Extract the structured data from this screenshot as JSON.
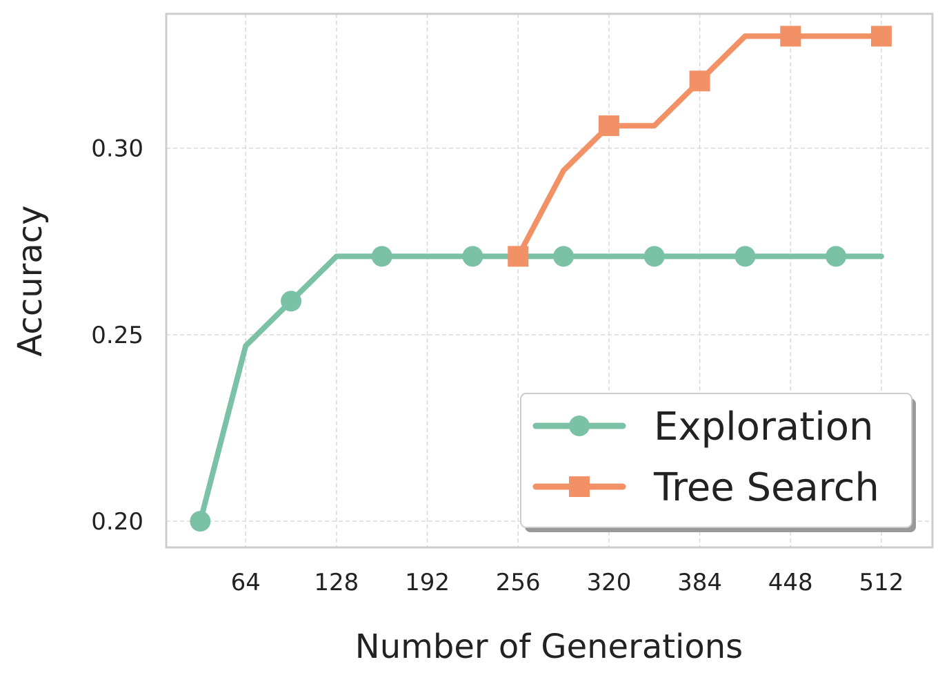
{
  "chart_data": {
    "type": "line",
    "title": "",
    "xlabel": "Number of Generations",
    "ylabel": "Accuracy",
    "xlim": [
      8,
      548
    ],
    "ylim": [
      0.193,
      0.336
    ],
    "xticks": [
      64,
      128,
      192,
      256,
      320,
      384,
      448,
      512
    ],
    "xtick_labels": [
      "64",
      "128",
      "192",
      "256",
      "320",
      "384",
      "448",
      "512"
    ],
    "yticks": [
      0.2,
      0.25,
      0.3
    ],
    "ytick_labels": [
      "0.20",
      "0.25",
      "0.30"
    ],
    "grid": true,
    "legend_position": "lower-right",
    "series": [
      {
        "name": "Exploration",
        "color": "#7bc1a5",
        "marker": "circle",
        "x": [
          32,
          64,
          96,
          128,
          160,
          192,
          224,
          256,
          288,
          320,
          352,
          384,
          416,
          448,
          480,
          512
        ],
        "y": [
          0.2,
          0.247,
          0.259,
          0.271,
          0.271,
          0.271,
          0.271,
          0.271,
          0.271,
          0.271,
          0.271,
          0.271,
          0.271,
          0.271,
          0.271,
          0.271
        ],
        "marker_x": [
          32,
          96,
          160,
          224,
          288,
          352,
          416,
          480
        ]
      },
      {
        "name": "Tree Search",
        "color": "#f29166",
        "marker": "square",
        "x": [
          256,
          288,
          320,
          352,
          384,
          416,
          448,
          480,
          512
        ],
        "y": [
          0.271,
          0.294,
          0.306,
          0.306,
          0.318,
          0.33,
          0.33,
          0.33,
          0.33
        ],
        "marker_x": [
          256,
          320,
          384,
          448,
          512
        ]
      }
    ]
  }
}
